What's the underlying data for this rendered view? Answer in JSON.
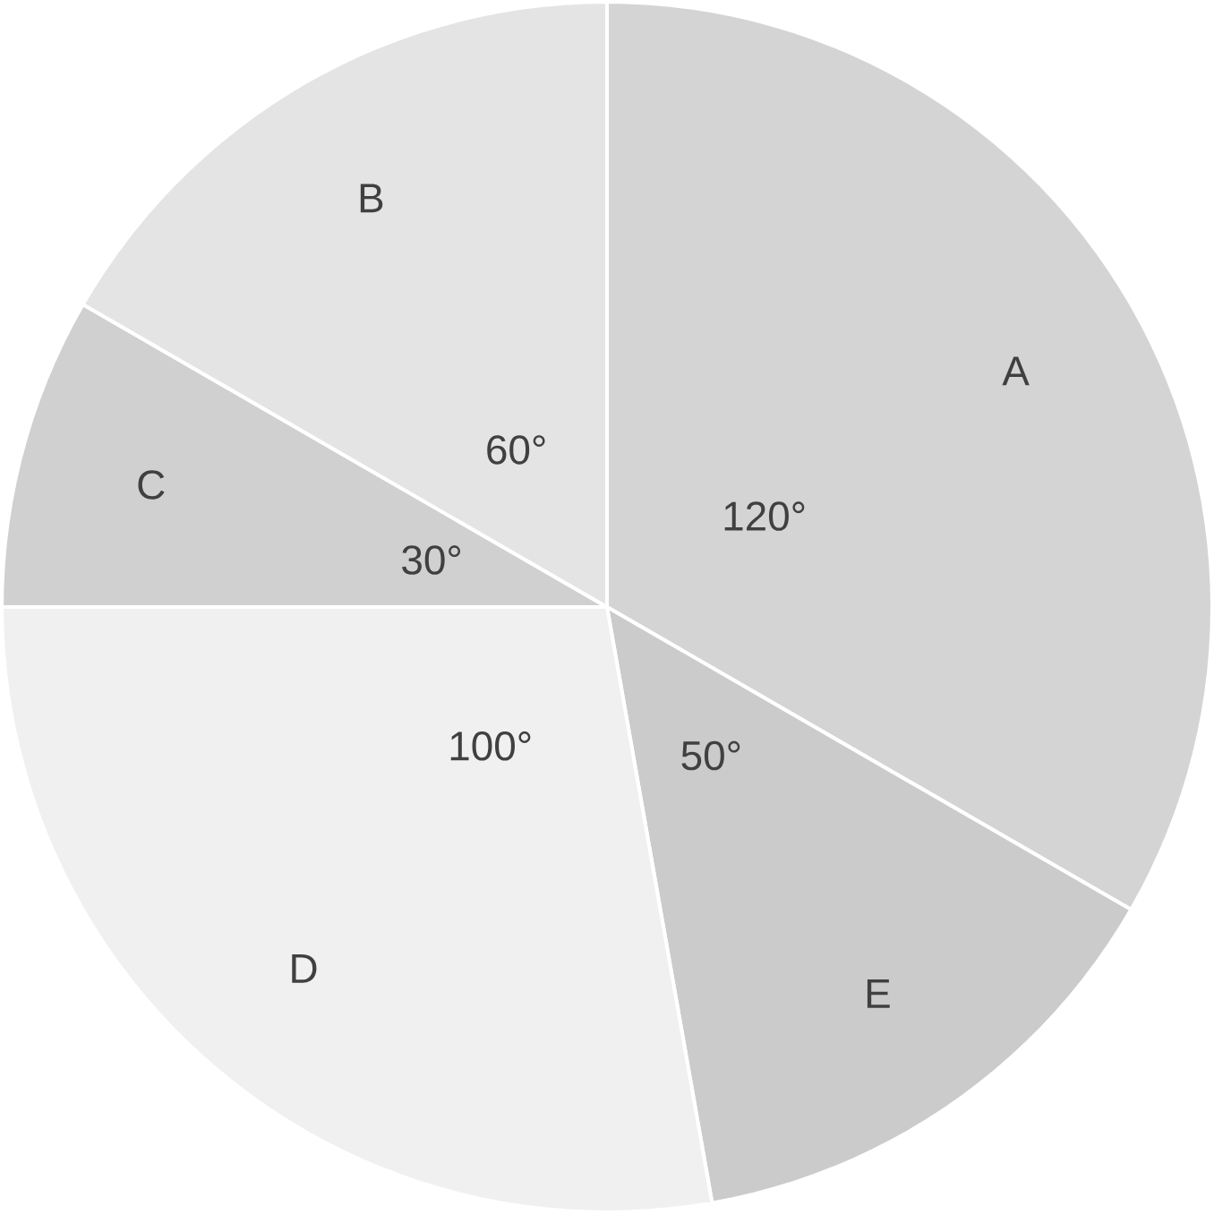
{
  "chart_data": {
    "type": "pie",
    "categories": [
      "A",
      "E",
      "D",
      "C",
      "B"
    ],
    "values": [
      120,
      50,
      100,
      30,
      60
    ],
    "value_labels": [
      "120°",
      "50°",
      "100°",
      "30°",
      "60°"
    ],
    "colors": [
      "#d4d4d4",
      "#cbcbcb",
      "#f0f0f0",
      "#d0d0d0",
      "#e4e4e4"
    ]
  }
}
